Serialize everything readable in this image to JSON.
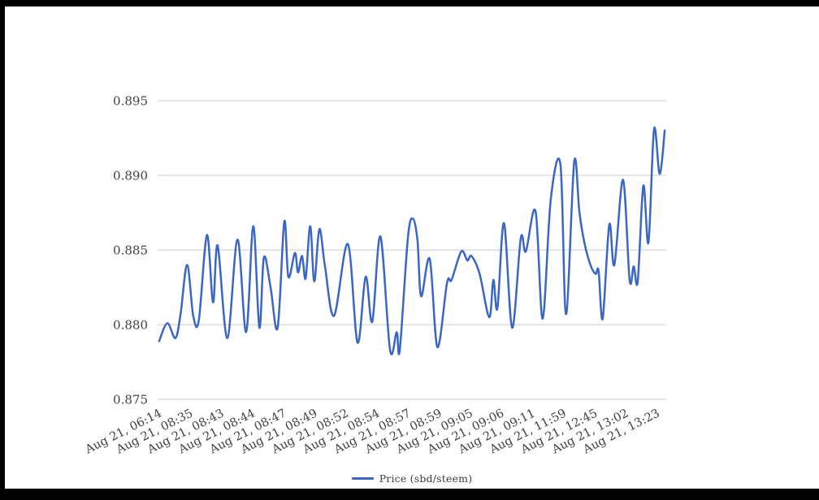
{
  "chart_data": {
    "type": "line",
    "title": "",
    "legend_label": "Price (sbd/steem)",
    "legend_position": "bottom",
    "series_name": "Price (sbd/steem)",
    "line_color": "#3b66c5",
    "grid_color": "#cccccc",
    "axis_label_color": "#404040",
    "background_color": "#ffffff",
    "frame_color": "#000000",
    "grid_on": true,
    "xlabel": "",
    "ylabel": "",
    "ylim": [
      0.875,
      0.895
    ],
    "y_ticks": [
      0.895,
      0.89,
      0.885,
      0.88,
      0.875
    ],
    "y_tick_labels": [
      "0.895",
      "0.890",
      "0.885",
      "0.880",
      "0.875"
    ],
    "x_tick_labels": [
      "Aug 21, 06:14",
      "Aug 21, 08:35",
      "Aug 21, 08:43",
      "Aug 21, 08:44",
      "Aug 21, 08:47",
      "Aug 21, 08:49",
      "Aug 21, 08:52",
      "Aug 21, 08:54",
      "Aug 21, 08:57",
      "Aug 21, 08:59",
      "Aug 21, 09:05",
      "Aug 21, 09:06",
      "Aug 21, 09:11",
      "Aug 21, 11:59",
      "Aug 21, 12:45",
      "Aug 21, 13:02",
      "Aug 21, 13:23"
    ],
    "x_tick_rotation_deg": -27,
    "points": [
      [
        0.003,
        0.8789
      ],
      [
        0.019,
        0.8801
      ],
      [
        0.035,
        0.8791
      ],
      [
        0.045,
        0.8807
      ],
      [
        0.058,
        0.884
      ],
      [
        0.07,
        0.8806
      ],
      [
        0.081,
        0.8803
      ],
      [
        0.097,
        0.886
      ],
      [
        0.109,
        0.8815
      ],
      [
        0.118,
        0.8853
      ],
      [
        0.137,
        0.8791
      ],
      [
        0.157,
        0.8857
      ],
      [
        0.174,
        0.8795
      ],
      [
        0.188,
        0.8866
      ],
      [
        0.2,
        0.8798
      ],
      [
        0.209,
        0.8845
      ],
      [
        0.222,
        0.8825
      ],
      [
        0.236,
        0.8798
      ],
      [
        0.249,
        0.8869
      ],
      [
        0.257,
        0.8832
      ],
      [
        0.27,
        0.8848
      ],
      [
        0.276,
        0.8835
      ],
      [
        0.284,
        0.8846
      ],
      [
        0.291,
        0.8831
      ],
      [
        0.3,
        0.8866
      ],
      [
        0.308,
        0.8829
      ],
      [
        0.318,
        0.8864
      ],
      [
        0.329,
        0.8839
      ],
      [
        0.347,
        0.8806
      ],
      [
        0.374,
        0.8854
      ],
      [
        0.393,
        0.8788
      ],
      [
        0.409,
        0.8832
      ],
      [
        0.422,
        0.8802
      ],
      [
        0.438,
        0.8859
      ],
      [
        0.457,
        0.8783
      ],
      [
        0.47,
        0.8795
      ],
      [
        0.476,
        0.8783
      ],
      [
        0.492,
        0.8858
      ],
      [
        0.502,
        0.8871
      ],
      [
        0.511,
        0.8856
      ],
      [
        0.518,
        0.8819
      ],
      [
        0.535,
        0.8844
      ],
      [
        0.55,
        0.8785
      ],
      [
        0.569,
        0.8828
      ],
      [
        0.578,
        0.883
      ],
      [
        0.597,
        0.8849
      ],
      [
        0.609,
        0.8843
      ],
      [
        0.617,
        0.8846
      ],
      [
        0.633,
        0.8834
      ],
      [
        0.652,
        0.8805
      ],
      [
        0.66,
        0.883
      ],
      [
        0.668,
        0.8811
      ],
      [
        0.681,
        0.8868
      ],
      [
        0.697,
        0.8798
      ],
      [
        0.714,
        0.8858
      ],
      [
        0.724,
        0.8849
      ],
      [
        0.743,
        0.8876
      ],
      [
        0.757,
        0.8804
      ],
      [
        0.773,
        0.8884
      ],
      [
        0.792,
        0.8907
      ],
      [
        0.803,
        0.8807
      ],
      [
        0.819,
        0.8909
      ],
      [
        0.829,
        0.8876
      ],
      [
        0.839,
        0.8855
      ],
      [
        0.851,
        0.884
      ],
      [
        0.861,
        0.8834
      ],
      [
        0.867,
        0.8836
      ],
      [
        0.875,
        0.8804
      ],
      [
        0.888,
        0.8867
      ],
      [
        0.898,
        0.884
      ],
      [
        0.915,
        0.8897
      ],
      [
        0.928,
        0.883
      ],
      [
        0.936,
        0.8839
      ],
      [
        0.944,
        0.8829
      ],
      [
        0.955,
        0.8893
      ],
      [
        0.965,
        0.8855
      ],
      [
        0.976,
        0.8931
      ],
      [
        0.987,
        0.8901
      ],
      [
        0.997,
        0.893
      ]
    ]
  }
}
